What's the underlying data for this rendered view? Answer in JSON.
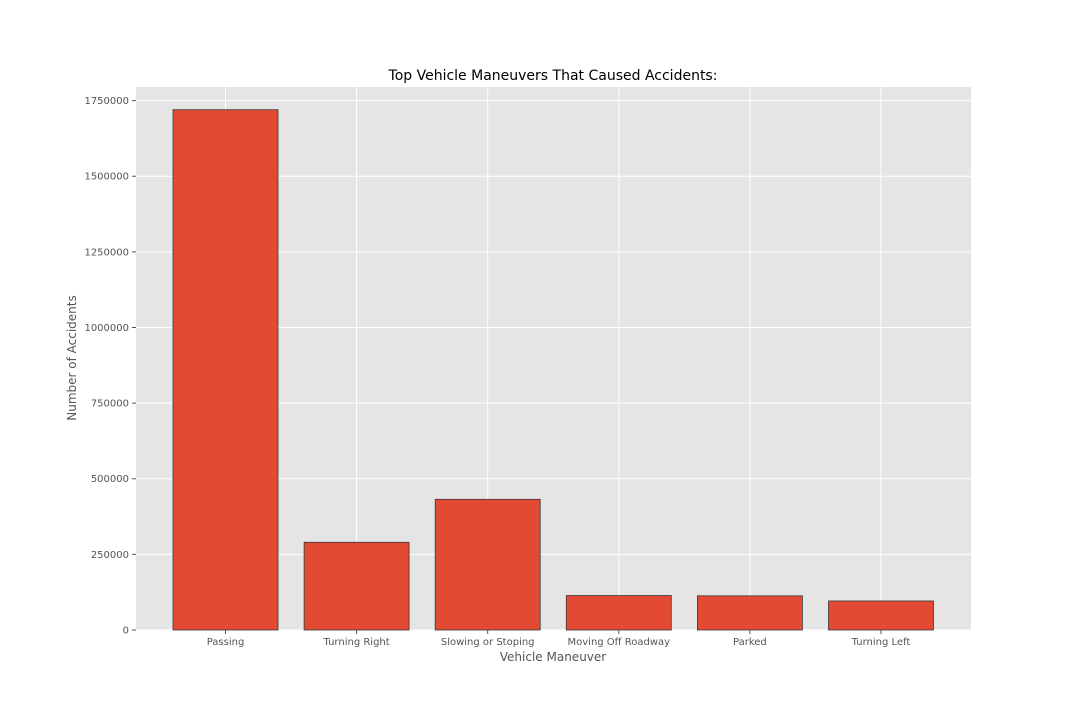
{
  "chart_data": {
    "type": "bar",
    "title": "Top Vehicle Maneuvers That Caused Accidents:",
    "xlabel": "Vehicle Maneuver",
    "ylabel": "Number of Accidents",
    "categories": [
      "Passing",
      "Turning Right",
      "Slowing or Stoping",
      "Moving Off Roadway",
      "Parked",
      "Turning Left"
    ],
    "values": [
      1720000,
      290000,
      432000,
      114000,
      113000,
      96000
    ],
    "ylim": [
      0,
      1795000
    ],
    "yticks": [
      0,
      250000,
      500000,
      750000,
      1000000,
      1250000,
      1500000,
      1750000
    ],
    "ytick_labels": [
      "0",
      "250000",
      "500000",
      "750000",
      "1000000",
      "1250000",
      "1500000",
      "1750000"
    ],
    "grid": true,
    "colors": {
      "bar": "#E24A33",
      "bar_edge": "#3a3a3a",
      "plot_bg": "#E5E5E5",
      "grid": "#ffffff"
    }
  }
}
